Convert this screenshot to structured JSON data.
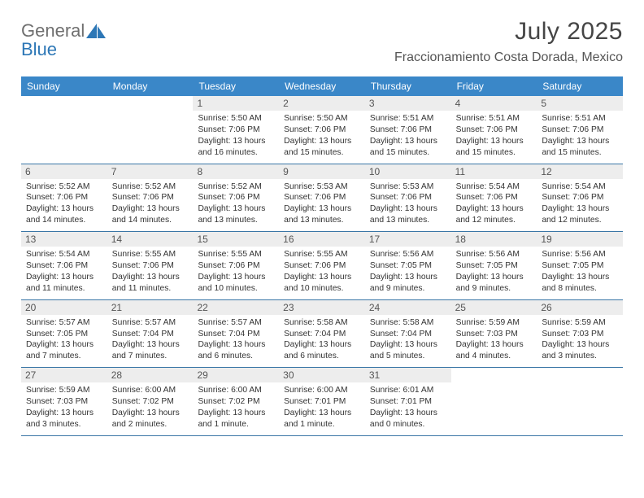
{
  "logo": {
    "line1": "General",
    "line2": "Blue"
  },
  "title": "July 2025",
  "location": "Fraccionamiento Costa Dorada, Mexico",
  "colors": {
    "header_bg": "#3a87c8",
    "header_text": "#ffffff",
    "daynum_bg": "#ededed",
    "border": "#3a76a6",
    "logo_gray": "#6f6f6f",
    "logo_blue": "#2d77b6",
    "title_color": "#454545",
    "body_text": "#333333"
  },
  "day_names": [
    "Sunday",
    "Monday",
    "Tuesday",
    "Wednesday",
    "Thursday",
    "Friday",
    "Saturday"
  ],
  "weeks": [
    [
      {
        "n": ""
      },
      {
        "n": ""
      },
      {
        "n": "1",
        "sr": "5:50 AM",
        "ss": "7:06 PM",
        "dl": "13 hours and 16 minutes."
      },
      {
        "n": "2",
        "sr": "5:50 AM",
        "ss": "7:06 PM",
        "dl": "13 hours and 15 minutes."
      },
      {
        "n": "3",
        "sr": "5:51 AM",
        "ss": "7:06 PM",
        "dl": "13 hours and 15 minutes."
      },
      {
        "n": "4",
        "sr": "5:51 AM",
        "ss": "7:06 PM",
        "dl": "13 hours and 15 minutes."
      },
      {
        "n": "5",
        "sr": "5:51 AM",
        "ss": "7:06 PM",
        "dl": "13 hours and 15 minutes."
      }
    ],
    [
      {
        "n": "6",
        "sr": "5:52 AM",
        "ss": "7:06 PM",
        "dl": "13 hours and 14 minutes."
      },
      {
        "n": "7",
        "sr": "5:52 AM",
        "ss": "7:06 PM",
        "dl": "13 hours and 14 minutes."
      },
      {
        "n": "8",
        "sr": "5:52 AM",
        "ss": "7:06 PM",
        "dl": "13 hours and 13 minutes."
      },
      {
        "n": "9",
        "sr": "5:53 AM",
        "ss": "7:06 PM",
        "dl": "13 hours and 13 minutes."
      },
      {
        "n": "10",
        "sr": "5:53 AM",
        "ss": "7:06 PM",
        "dl": "13 hours and 13 minutes."
      },
      {
        "n": "11",
        "sr": "5:54 AM",
        "ss": "7:06 PM",
        "dl": "13 hours and 12 minutes."
      },
      {
        "n": "12",
        "sr": "5:54 AM",
        "ss": "7:06 PM",
        "dl": "13 hours and 12 minutes."
      }
    ],
    [
      {
        "n": "13",
        "sr": "5:54 AM",
        "ss": "7:06 PM",
        "dl": "13 hours and 11 minutes."
      },
      {
        "n": "14",
        "sr": "5:55 AM",
        "ss": "7:06 PM",
        "dl": "13 hours and 11 minutes."
      },
      {
        "n": "15",
        "sr": "5:55 AM",
        "ss": "7:06 PM",
        "dl": "13 hours and 10 minutes."
      },
      {
        "n": "16",
        "sr": "5:55 AM",
        "ss": "7:06 PM",
        "dl": "13 hours and 10 minutes."
      },
      {
        "n": "17",
        "sr": "5:56 AM",
        "ss": "7:05 PM",
        "dl": "13 hours and 9 minutes."
      },
      {
        "n": "18",
        "sr": "5:56 AM",
        "ss": "7:05 PM",
        "dl": "13 hours and 9 minutes."
      },
      {
        "n": "19",
        "sr": "5:56 AM",
        "ss": "7:05 PM",
        "dl": "13 hours and 8 minutes."
      }
    ],
    [
      {
        "n": "20",
        "sr": "5:57 AM",
        "ss": "7:05 PM",
        "dl": "13 hours and 7 minutes."
      },
      {
        "n": "21",
        "sr": "5:57 AM",
        "ss": "7:04 PM",
        "dl": "13 hours and 7 minutes."
      },
      {
        "n": "22",
        "sr": "5:57 AM",
        "ss": "7:04 PM",
        "dl": "13 hours and 6 minutes."
      },
      {
        "n": "23",
        "sr": "5:58 AM",
        "ss": "7:04 PM",
        "dl": "13 hours and 6 minutes."
      },
      {
        "n": "24",
        "sr": "5:58 AM",
        "ss": "7:04 PM",
        "dl": "13 hours and 5 minutes."
      },
      {
        "n": "25",
        "sr": "5:59 AM",
        "ss": "7:03 PM",
        "dl": "13 hours and 4 minutes."
      },
      {
        "n": "26",
        "sr": "5:59 AM",
        "ss": "7:03 PM",
        "dl": "13 hours and 3 minutes."
      }
    ],
    [
      {
        "n": "27",
        "sr": "5:59 AM",
        "ss": "7:03 PM",
        "dl": "13 hours and 3 minutes."
      },
      {
        "n": "28",
        "sr": "6:00 AM",
        "ss": "7:02 PM",
        "dl": "13 hours and 2 minutes."
      },
      {
        "n": "29",
        "sr": "6:00 AM",
        "ss": "7:02 PM",
        "dl": "13 hours and 1 minute."
      },
      {
        "n": "30",
        "sr": "6:00 AM",
        "ss": "7:01 PM",
        "dl": "13 hours and 1 minute."
      },
      {
        "n": "31",
        "sr": "6:01 AM",
        "ss": "7:01 PM",
        "dl": "13 hours and 0 minutes."
      },
      {
        "n": ""
      },
      {
        "n": ""
      }
    ]
  ],
  "labels": {
    "sunrise_prefix": "Sunrise: ",
    "sunset_prefix": "Sunset: ",
    "daylight_prefix": "Daylight: "
  }
}
